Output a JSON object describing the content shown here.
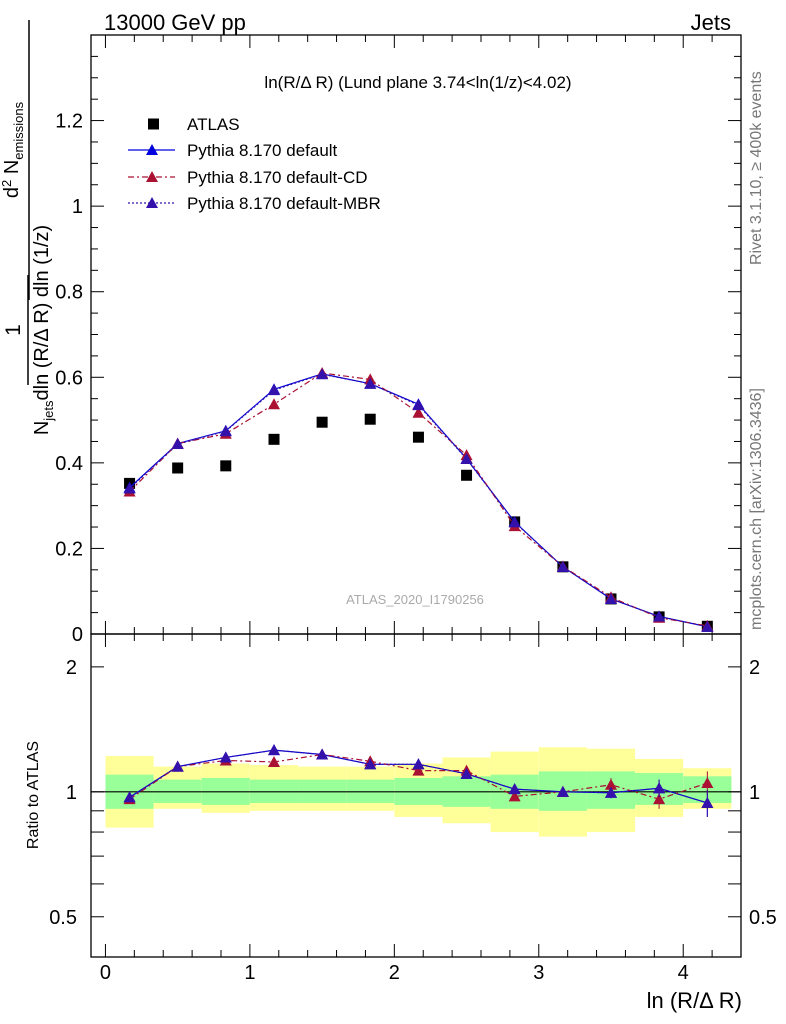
{
  "header": {
    "left": "13000 GeV pp",
    "right": "Jets"
  },
  "side_labels": {
    "rivet": "Rivet 3.1.10, ≥ 400k events",
    "mcplots": "mcplots.cern.ch [arXiv:1306.3436]"
  },
  "watermark": "ATLAS_2020_I1790256",
  "colors": {
    "atlas": "#000000",
    "default": "#0000dd",
    "cd": "#aa1133",
    "mbr": "#3311aa",
    "band_inner": "#99ff99",
    "band_outer": "#ffff99"
  },
  "chart_data": [
    {
      "type": "scatter",
      "title": "ln(R/Δ R) (Lund plane 3.74<ln(1/z)<4.02)",
      "xlabel": "ln (R/Δ R)",
      "ylabel": "1/N_jets d²N_emissions / dln (R/Δ R) dln (1/z)",
      "xlim": [
        -0.1,
        4.4
      ],
      "ylim": [
        0,
        1.4
      ],
      "yticks": [
        0,
        0.2,
        0.4,
        0.6,
        0.8,
        1,
        1.2
      ],
      "ytick_labels": [
        "0",
        "0.2",
        "0.4",
        "0.6",
        "0.8",
        "1",
        "1.2"
      ],
      "legend_position": "top-left",
      "x": [
        0.167,
        0.5,
        0.833,
        1.167,
        1.5,
        1.833,
        2.167,
        2.5,
        2.833,
        3.167,
        3.5,
        3.833,
        4.167
      ],
      "series": [
        {
          "name": "ATLAS",
          "style": "square",
          "values": [
            0.352,
            0.388,
            0.393,
            0.455,
            0.495,
            0.502,
            0.46,
            0.371,
            0.262,
            0.157,
            0.082,
            0.04,
            0.018
          ]
        },
        {
          "name": "Pythia 8.170 default",
          "style": "solid",
          "values": [
            0.342,
            0.445,
            0.475,
            0.572,
            0.608,
            0.585,
            0.537,
            0.41,
            0.262,
            0.157,
            0.082,
            0.041,
            0.017
          ]
        },
        {
          "name": "Pythia 8.170 default-CD",
          "style": "dashdot",
          "values": [
            0.333,
            0.445,
            0.468,
            0.537,
            0.61,
            0.595,
            0.517,
            0.418,
            0.252,
            0.158,
            0.086,
            0.038,
            0.019
          ]
        },
        {
          "name": "Pythia 8.170 default-MBR",
          "style": "dotted",
          "values": [
            0.34,
            0.444,
            0.474,
            0.57,
            0.607,
            0.585,
            0.535,
            0.409,
            0.261,
            0.157,
            0.082,
            0.041,
            0.017
          ]
        }
      ]
    },
    {
      "type": "scatter",
      "xlabel": "ln (R/Δ R)",
      "ylabel": "Ratio to ATLAS",
      "xlim": [
        -0.1,
        4.4
      ],
      "ylim": [
        0.4,
        2.4
      ],
      "scale": "log",
      "xticks": [
        0,
        1,
        2,
        3,
        4
      ],
      "xtick_labels": [
        "0",
        "1",
        "2",
        "3",
        "4"
      ],
      "yticks": [
        0.5,
        1,
        2
      ],
      "ytick_labels": [
        "0.5",
        "1",
        "2"
      ],
      "x": [
        0.167,
        0.5,
        0.833,
        1.167,
        1.5,
        1.833,
        2.167,
        2.5,
        2.833,
        3.167,
        3.5,
        3.833,
        4.167
      ],
      "band_inner": [
        [
          0.91,
          1.1
        ],
        [
          0.94,
          1.07
        ],
        [
          0.93,
          1.08
        ],
        [
          0.94,
          1.07
        ],
        [
          0.94,
          1.07
        ],
        [
          0.94,
          1.07
        ],
        [
          0.93,
          1.08
        ],
        [
          0.92,
          1.09
        ],
        [
          0.91,
          1.1
        ],
        [
          0.9,
          1.12
        ],
        [
          0.91,
          1.12
        ],
        [
          0.93,
          1.11
        ],
        [
          0.94,
          1.09
        ]
      ],
      "band_outer": [
        [
          0.82,
          1.22
        ],
        [
          0.91,
          1.15
        ],
        [
          0.89,
          1.17
        ],
        [
          0.9,
          1.16
        ],
        [
          0.9,
          1.15
        ],
        [
          0.9,
          1.15
        ],
        [
          0.87,
          1.17
        ],
        [
          0.84,
          1.21
        ],
        [
          0.8,
          1.25
        ],
        [
          0.78,
          1.28
        ],
        [
          0.8,
          1.27
        ],
        [
          0.87,
          1.2
        ],
        [
          0.91,
          1.14
        ]
      ],
      "series": [
        {
          "name": "Pythia 8.170 default",
          "style": "solid",
          "values": [
            0.97,
            1.15,
            1.21,
            1.26,
            1.23,
            1.165,
            1.165,
            1.105,
            1.015,
            1.0,
            0.995,
            1.02,
            0.94
          ],
          "errors": [
            0.02,
            0.01,
            0.01,
            0.01,
            0.01,
            0.01,
            0.01,
            0.01,
            0.015,
            0.02,
            0.03,
            0.05,
            0.07
          ]
        },
        {
          "name": "Pythia 8.170 default-CD",
          "style": "dashdot",
          "values": [
            0.96,
            1.15,
            1.19,
            1.18,
            1.23,
            1.185,
            1.125,
            1.125,
            0.975,
            1.0,
            1.04,
            0.96,
            1.05
          ],
          "errors": [
            0.02,
            0.01,
            0.01,
            0.01,
            0.01,
            0.01,
            0.01,
            0.01,
            0.015,
            0.02,
            0.04,
            0.05,
            0.07
          ]
        },
        {
          "name": "Pythia 8.170 default-MBR",
          "style": "dotted",
          "values": [
            0.97,
            1.15,
            1.21,
            1.26,
            1.23,
            1.165,
            1.165,
            1.105,
            1.015,
            1.0,
            0.995,
            1.02,
            0.94
          ],
          "errors": [
            0.02,
            0.01,
            0.01,
            0.01,
            0.01,
            0.01,
            0.01,
            0.01,
            0.015,
            0.02,
            0.03,
            0.05,
            0.07
          ]
        }
      ]
    }
  ]
}
